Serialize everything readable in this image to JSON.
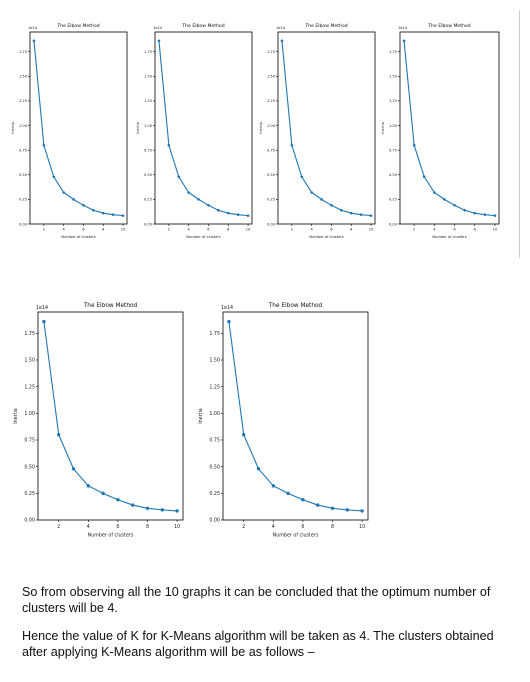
{
  "chart_data": [
    {
      "type": "line",
      "title": "The Elbow Method",
      "xlabel": "Number of clusters",
      "ylabel": "Inertia",
      "y_multiplier_label": "1e14",
      "x": [
        1,
        2,
        3,
        4,
        5,
        6,
        7,
        8,
        9,
        10
      ],
      "values": [
        1.86,
        0.8,
        0.48,
        0.32,
        0.25,
        0.19,
        0.14,
        0.11,
        0.095,
        0.085
      ],
      "xticks": [
        "2",
        "4",
        "6",
        "8",
        "10"
      ],
      "yticks": [
        "0.00",
        "0.25",
        "0.50",
        "0.75",
        "1.00",
        "1.25",
        "1.50",
        "1.75"
      ],
      "ylim": [
        0,
        1.95
      ],
      "xlim": [
        0.6,
        10.4
      ],
      "grid": false,
      "marker": "circle",
      "color": "#1f77b4"
    },
    {
      "type": "line",
      "title": "The Elbow Method",
      "xlabel": "Number of clusters",
      "ylabel": "Inertia",
      "y_multiplier_label": "1e14",
      "x": [
        1,
        2,
        3,
        4,
        5,
        6,
        7,
        8,
        9,
        10
      ],
      "values": [
        1.86,
        0.8,
        0.48,
        0.32,
        0.25,
        0.19,
        0.14,
        0.11,
        0.095,
        0.085
      ],
      "xticks": [
        "2",
        "4",
        "6",
        "8",
        "10"
      ],
      "yticks": [
        "0.00",
        "0.25",
        "0.50",
        "0.75",
        "1.00",
        "1.25",
        "1.50",
        "1.75"
      ],
      "ylim": [
        0,
        1.95
      ],
      "xlim": [
        0.6,
        10.4
      ],
      "grid": false,
      "marker": "circle",
      "color": "#1f77b4"
    },
    {
      "type": "line",
      "title": "The Elbow Method",
      "xlabel": "Number of clusters",
      "ylabel": "Inertia",
      "y_multiplier_label": "1e14",
      "x": [
        1,
        2,
        3,
        4,
        5,
        6,
        7,
        8,
        9,
        10
      ],
      "values": [
        1.86,
        0.8,
        0.48,
        0.32,
        0.25,
        0.19,
        0.14,
        0.11,
        0.095,
        0.085
      ],
      "xticks": [
        "2",
        "4",
        "6",
        "8",
        "10"
      ],
      "yticks": [
        "0.00",
        "0.25",
        "0.50",
        "0.75",
        "1.00",
        "1.25",
        "1.50",
        "1.75"
      ],
      "ylim": [
        0,
        1.95
      ],
      "xlim": [
        0.6,
        10.4
      ],
      "grid": false,
      "marker": "circle",
      "color": "#1f77b4"
    },
    {
      "type": "line",
      "title": "The Elbow Method",
      "xlabel": "Number of clusters",
      "ylabel": "Inertia",
      "y_multiplier_label": "1e14",
      "x": [
        1,
        2,
        3,
        4,
        5,
        6,
        7,
        8,
        9,
        10
      ],
      "values": [
        1.86,
        0.8,
        0.48,
        0.32,
        0.25,
        0.19,
        0.14,
        0.11,
        0.095,
        0.085
      ],
      "xticks": [
        "2",
        "4",
        "6",
        "8",
        "10"
      ],
      "yticks": [
        "0.00",
        "0.25",
        "0.50",
        "0.75",
        "1.00",
        "1.25",
        "1.50",
        "1.75"
      ],
      "ylim": [
        0,
        1.95
      ],
      "xlim": [
        0.6,
        10.4
      ],
      "grid": false,
      "marker": "circle",
      "color": "#1f77b4"
    },
    {
      "type": "line",
      "title": "The Elbow Method",
      "xlabel": "Number of clusters",
      "ylabel": "Inertia",
      "y_multiplier_label": "1e14",
      "x": [
        1,
        2,
        3,
        4,
        5,
        6,
        7,
        8,
        9,
        10
      ],
      "values": [
        1.86,
        0.8,
        0.48,
        0.32,
        0.25,
        0.19,
        0.14,
        0.11,
        0.095,
        0.085
      ],
      "xticks": [
        "2",
        "4",
        "6",
        "8",
        "10"
      ],
      "yticks": [
        "0.00",
        "0.25",
        "0.50",
        "0.75",
        "1.00",
        "1.25",
        "1.50",
        "1.75"
      ],
      "ylim": [
        0,
        1.95
      ],
      "xlim": [
        0.6,
        10.4
      ],
      "grid": false,
      "marker": "circle",
      "color": "#1f77b4"
    },
    {
      "type": "line",
      "title": "The Elbow Method",
      "xlabel": "Number of clusters",
      "ylabel": "Inertia",
      "y_multiplier_label": "1e14",
      "x": [
        1,
        2,
        3,
        4,
        5,
        6,
        7,
        8,
        9,
        10
      ],
      "values": [
        1.86,
        0.8,
        0.48,
        0.32,
        0.25,
        0.19,
        0.14,
        0.11,
        0.095,
        0.085
      ],
      "xticks": [
        "2",
        "4",
        "6",
        "8",
        "10"
      ],
      "yticks": [
        "0.00",
        "0.25",
        "0.50",
        "0.75",
        "1.00",
        "1.25",
        "1.50",
        "1.75"
      ],
      "ylim": [
        0,
        1.95
      ],
      "xlim": [
        0.6,
        10.4
      ],
      "grid": false,
      "marker": "circle",
      "color": "#1f77b4"
    }
  ],
  "text": {
    "paragraph_1": "So from observing all the 10 graphs it can be concluded that the optimum number of clusters will be 4.",
    "paragraph_2": "Hence the value of K for K-Means algorithm will be taken as 4. The clusters obtained after applying K-Means algorithm will be as follows –"
  }
}
